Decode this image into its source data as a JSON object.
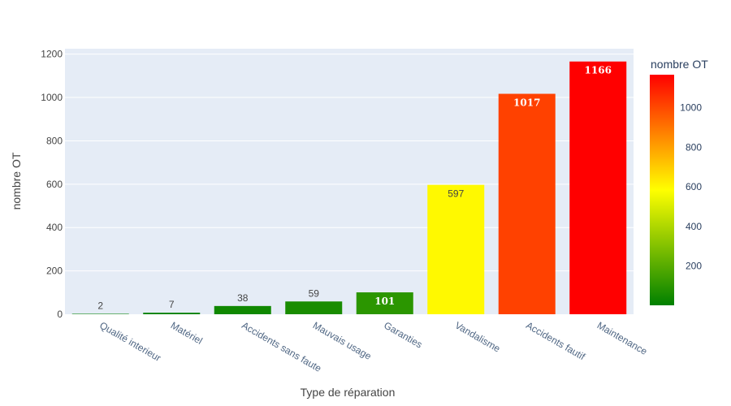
{
  "chart_data": {
    "type": "bar",
    "categories": [
      "Qualité interieur",
      "Matériel",
      "Accidents sans faute",
      "Mauvais usage",
      "Garanties",
      "Vandalisme",
      "Accidents fautif",
      "Maintenance"
    ],
    "values": [
      2,
      7,
      38,
      59,
      101,
      597,
      1017,
      1166
    ],
    "xlabel": "Type de réparation",
    "ylabel": "nombre OT",
    "ylim": [
      0,
      1225
    ],
    "yticks": [
      0,
      200,
      400,
      600,
      800,
      1000,
      1200
    ],
    "grid": true,
    "colorbar": {
      "title": "nombre OT",
      "range": [
        2,
        1166
      ],
      "ticks": [
        200,
        400,
        600,
        800,
        1000
      ],
      "colorscale": [
        "#008000",
        "#ffff00",
        "#ff0000"
      ]
    },
    "plot_bgcolor": "#e5ecf6"
  }
}
